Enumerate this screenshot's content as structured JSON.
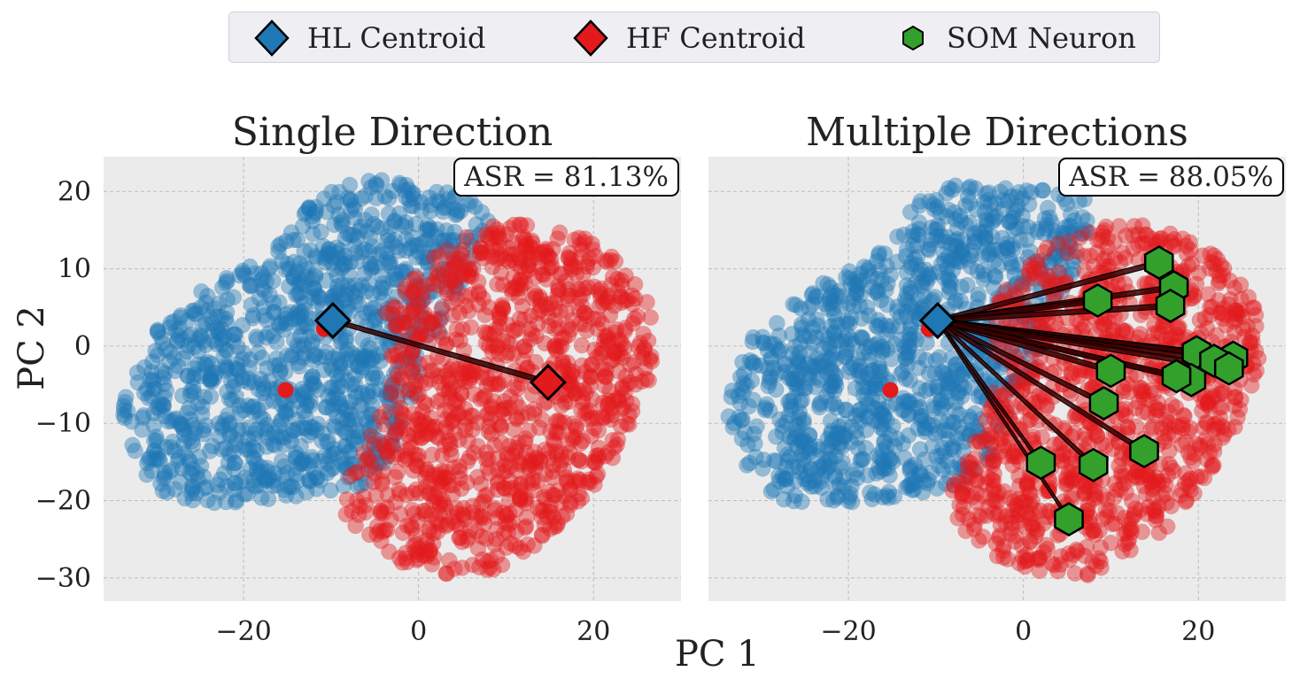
{
  "legend": {
    "items": [
      {
        "label": "HL Centroid",
        "marker": "diamond",
        "color": "#1f77b4"
      },
      {
        "label": "HF Centroid",
        "marker": "diamond",
        "color": "#e31a1c"
      },
      {
        "label": "SOM Neuron",
        "marker": "hexagon",
        "color": "#33a02c"
      }
    ]
  },
  "shared": {
    "xlabel": "PC 1",
    "ylabel": "PC 2"
  },
  "colors": {
    "hl": "#1f77b4",
    "hf": "#e31a1c",
    "som": "#33a02c",
    "panel_bg": "#ebebeb",
    "grid": "#bdbdbd"
  },
  "chart_data": [
    {
      "type": "scatter",
      "title": "Single Direction",
      "annotation": "ASR = 81.13%",
      "xlabel": "PC 1",
      "ylabel": "PC 2",
      "xlim": [
        -36,
        30
      ],
      "ylim": [
        -33,
        24.5
      ],
      "xticks": [
        -20,
        0,
        20
      ],
      "yticks": [
        20,
        10,
        0,
        -10,
        -20,
        -30
      ],
      "grid": true,
      "hl_centroid": {
        "x": -9.8,
        "y": 3.3
      },
      "hf_centroid": {
        "x": 14.8,
        "y": -4.7
      },
      "red_dots": [
        {
          "x": -10.8,
          "y": 2.2
        },
        {
          "x": -15.2,
          "y": -5.7
        }
      ],
      "som_neurons": [],
      "blue_cloud": [
        [
          -33,
          -13
        ],
        [
          -31,
          -17
        ],
        [
          -28,
          -20
        ],
        [
          -21,
          -20.5
        ],
        [
          -14,
          -19.5
        ],
        [
          -6,
          -18
        ],
        [
          -3,
          -14
        ],
        [
          -2,
          -10
        ],
        [
          0,
          -5
        ],
        [
          2,
          -1
        ],
        [
          3,
          4
        ],
        [
          6,
          10
        ],
        [
          8,
          16
        ],
        [
          7,
          19
        ],
        [
          3,
          20
        ],
        [
          -3,
          21.5
        ],
        [
          -7,
          21.5
        ],
        [
          -12,
          19
        ],
        [
          -15,
          14
        ],
        [
          -18,
          11
        ],
        [
          -20,
          10
        ],
        [
          -25,
          7
        ],
        [
          -28,
          4
        ],
        [
          -31,
          1
        ],
        [
          -33,
          -4
        ],
        [
          -34,
          -9
        ]
      ],
      "red_cloud": [
        [
          -4,
          4
        ],
        [
          -1,
          9
        ],
        [
          3,
          13
        ],
        [
          8,
          15.5
        ],
        [
          14,
          16
        ],
        [
          19,
          14
        ],
        [
          23,
          11
        ],
        [
          25,
          8
        ],
        [
          27,
          4
        ],
        [
          27,
          -2
        ],
        [
          26,
          -6
        ],
        [
          24,
          -11
        ],
        [
          22,
          -16
        ],
        [
          19,
          -20
        ],
        [
          16,
          -24
        ],
        [
          13,
          -26
        ],
        [
          11,
          -28
        ],
        [
          8,
          -30
        ],
        [
          3,
          -29.5
        ],
        [
          -2,
          -28
        ],
        [
          -6,
          -25
        ],
        [
          -9,
          -21
        ],
        [
          -8,
          -17
        ],
        [
          -6,
          -13
        ],
        [
          -4,
          -8
        ],
        [
          -3,
          -2
        ]
      ]
    },
    {
      "type": "scatter",
      "title": "Multiple Directions",
      "annotation": "ASR = 88.05%",
      "xlabel": "PC 1",
      "ylabel": "PC 2",
      "xlim": [
        -36,
        30
      ],
      "ylim": [
        -33,
        24.5
      ],
      "xticks": [
        -20,
        0,
        20
      ],
      "yticks": [
        20,
        10,
        0,
        -10,
        -20,
        -30
      ],
      "grid": true,
      "hl_centroid": {
        "x": -9.8,
        "y": 3.3
      },
      "hf_centroid": null,
      "red_dots": [
        {
          "x": -10.8,
          "y": 2.2
        },
        {
          "x": -15.2,
          "y": -5.7
        }
      ],
      "som_neurons": [
        {
          "x": 15.5,
          "y": 10.8
        },
        {
          "x": 17.2,
          "y": 7.6
        },
        {
          "x": 8.5,
          "y": 5.9
        },
        {
          "x": 16.8,
          "y": 5.2
        },
        {
          "x": 19.8,
          "y": -0.8
        },
        {
          "x": 24.0,
          "y": -1.5
        },
        {
          "x": 21.8,
          "y": -1.9
        },
        {
          "x": 23.5,
          "y": -2.9
        },
        {
          "x": 10.0,
          "y": -3.2
        },
        {
          "x": 19.2,
          "y": -4.4
        },
        {
          "x": 17.5,
          "y": -3.9
        },
        {
          "x": 9.2,
          "y": -7.4
        },
        {
          "x": 13.8,
          "y": -13.6
        },
        {
          "x": 8.0,
          "y": -15.4
        },
        {
          "x": 2.0,
          "y": -15.1
        },
        {
          "x": 5.2,
          "y": -22.4
        }
      ],
      "blue_cloud": [
        [
          -33,
          -13
        ],
        [
          -31,
          -17
        ],
        [
          -28,
          -20
        ],
        [
          -21,
          -20.5
        ],
        [
          -14,
          -19.5
        ],
        [
          -6,
          -18
        ],
        [
          -3,
          -14
        ],
        [
          -2,
          -10
        ],
        [
          0,
          -5
        ],
        [
          2,
          -1
        ],
        [
          3,
          4
        ],
        [
          6,
          10
        ],
        [
          8,
          16
        ],
        [
          7,
          19
        ],
        [
          3,
          20
        ],
        [
          -3,
          21.5
        ],
        [
          -7,
          21.5
        ],
        [
          -12,
          19
        ],
        [
          -15,
          14
        ],
        [
          -18,
          11
        ],
        [
          -20,
          10
        ],
        [
          -25,
          7
        ],
        [
          -28,
          4
        ],
        [
          -31,
          1
        ],
        [
          -33,
          -4
        ],
        [
          -34,
          -9
        ]
      ],
      "red_cloud": [
        [
          -4,
          4
        ],
        [
          -1,
          9
        ],
        [
          3,
          13
        ],
        [
          8,
          15.5
        ],
        [
          14,
          16
        ],
        [
          19,
          14
        ],
        [
          23,
          11
        ],
        [
          25,
          8
        ],
        [
          27,
          4
        ],
        [
          27,
          -2
        ],
        [
          26,
          -6
        ],
        [
          24,
          -11
        ],
        [
          22,
          -16
        ],
        [
          19,
          -20
        ],
        [
          16,
          -24
        ],
        [
          13,
          -26
        ],
        [
          11,
          -28
        ],
        [
          8,
          -30
        ],
        [
          3,
          -29.5
        ],
        [
          -2,
          -28
        ],
        [
          -6,
          -25
        ],
        [
          -9,
          -21
        ],
        [
          -8,
          -17
        ],
        [
          -6,
          -13
        ],
        [
          -4,
          -8
        ],
        [
          -3,
          -2
        ]
      ]
    }
  ]
}
